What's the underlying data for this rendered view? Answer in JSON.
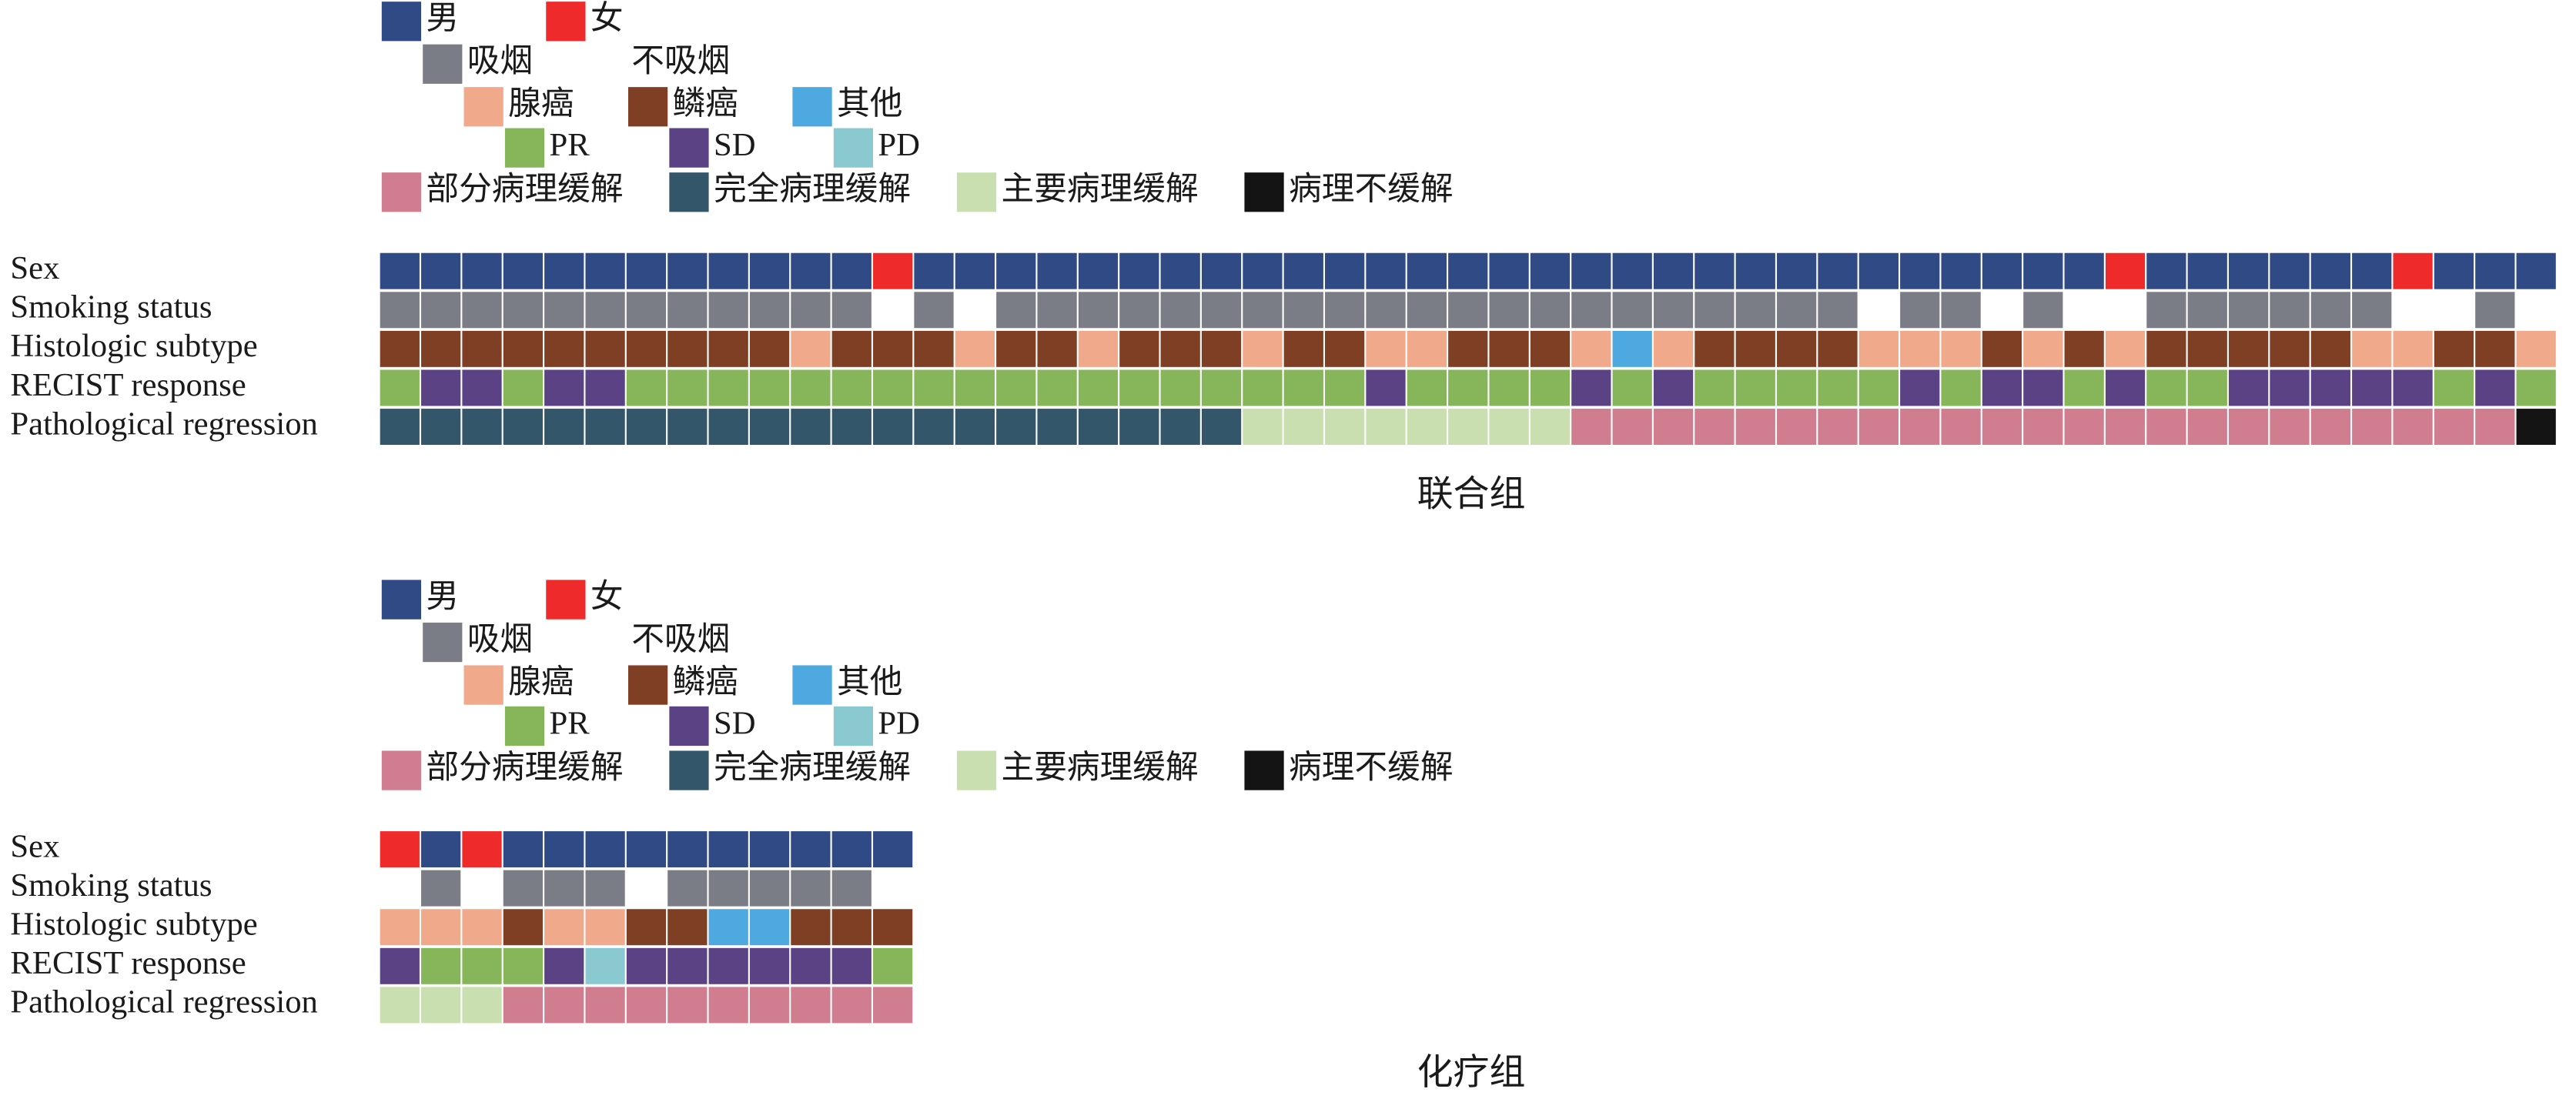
{
  "chart_data": [
    {
      "type": "tile",
      "title": "联合组",
      "legend": [
        [
          {
            "label": "男",
            "color": "#2f4a85"
          },
          {
            "label": "女",
            "color": "#ee2a2a"
          }
        ],
        [
          {
            "label": "吸烟",
            "color": "#7a7d85"
          },
          {
            "label": "不吸烟",
            "color": "#ffffff"
          }
        ],
        [
          {
            "label": "腺癌",
            "color": "#f0a98a"
          },
          {
            "label": "鳞癌",
            "color": "#7f3f25"
          },
          {
            "label": "其他",
            "color": "#4ea9e0"
          }
        ],
        [
          {
            "label": "PR",
            "color": "#86b55a"
          },
          {
            "label": "SD",
            "color": "#5a4285"
          },
          {
            "label": "PD",
            "color": "#8bc9d0"
          }
        ],
        [
          {
            "label": "部分病理缓解",
            "color": "#d07d8f"
          },
          {
            "label": "完全病理缓解",
            "color": "#34566a"
          },
          {
            "label": "主要病理缓解",
            "color": "#c9dfb0"
          },
          {
            "label": "病理不缓解",
            "color": "#141414"
          }
        ]
      ],
      "rows": [
        {
          "name": "Sex",
          "values": [
            "男",
            "男",
            "男",
            "男",
            "男",
            "男",
            "男",
            "男",
            "男",
            "男",
            "男",
            "男",
            "女",
            "男",
            "男",
            "男",
            "男",
            "男",
            "男",
            "男",
            "男",
            "男",
            "男",
            "男",
            "男",
            "男",
            "男",
            "男",
            "男",
            "男",
            "男",
            "男",
            "男",
            "男",
            "男",
            "男",
            "男",
            "男",
            "男",
            "男",
            "男",
            "男",
            "女",
            "男",
            "男",
            "男",
            "男",
            "男",
            "男",
            "女",
            "男",
            "男",
            "男"
          ]
        },
        {
          "name": "Smoking status",
          "values": [
            "吸烟",
            "吸烟",
            "吸烟",
            "吸烟",
            "吸烟",
            "吸烟",
            "吸烟",
            "吸烟",
            "吸烟",
            "吸烟",
            "吸烟",
            "吸烟",
            "不吸烟",
            "吸烟",
            "不吸烟",
            "吸烟",
            "吸烟",
            "吸烟",
            "吸烟",
            "吸烟",
            "吸烟",
            "吸烟",
            "吸烟",
            "吸烟",
            "吸烟",
            "吸烟",
            "吸烟",
            "吸烟",
            "吸烟",
            "吸烟",
            "吸烟",
            "吸烟",
            "吸烟",
            "吸烟",
            "吸烟",
            "吸烟",
            "不吸烟",
            "吸烟",
            "吸烟",
            "不吸烟",
            "吸烟",
            "不吸烟",
            "不吸烟",
            "吸烟",
            "吸烟",
            "吸烟",
            "吸烟",
            "吸烟",
            "吸烟",
            "不吸烟",
            "不吸烟",
            "吸烟",
            "不吸烟"
          ]
        },
        {
          "name": "Histologic subtype",
          "values": [
            "鳞癌",
            "鳞癌",
            "鳞癌",
            "鳞癌",
            "鳞癌",
            "鳞癌",
            "鳞癌",
            "鳞癌",
            "鳞癌",
            "鳞癌",
            "腺癌",
            "鳞癌",
            "鳞癌",
            "鳞癌",
            "腺癌",
            "鳞癌",
            "鳞癌",
            "腺癌",
            "鳞癌",
            "鳞癌",
            "鳞癌",
            "腺癌",
            "鳞癌",
            "鳞癌",
            "腺癌",
            "腺癌",
            "鳞癌",
            "鳞癌",
            "鳞癌",
            "腺癌",
            "其他",
            "腺癌",
            "鳞癌",
            "鳞癌",
            "鳞癌",
            "鳞癌",
            "腺癌",
            "腺癌",
            "腺癌",
            "鳞癌",
            "腺癌",
            "鳞癌",
            "腺癌",
            "鳞癌",
            "鳞癌",
            "鳞癌",
            "鳞癌",
            "鳞癌",
            "腺癌",
            "腺癌",
            "鳞癌",
            "鳞癌",
            "腺癌"
          ]
        },
        {
          "name": "RECIST response",
          "values": [
            "PR",
            "SD",
            "SD",
            "PR",
            "SD",
            "SD",
            "PR",
            "PR",
            "PR",
            "PR",
            "PR",
            "PR",
            "PR",
            "PR",
            "PR",
            "PR",
            "PR",
            "PR",
            "PR",
            "PR",
            "PR",
            "PR",
            "PR",
            "PR",
            "SD",
            "PR",
            "PR",
            "PR",
            "PR",
            "SD",
            "PR",
            "SD",
            "PR",
            "PR",
            "PR",
            "PR",
            "PR",
            "SD",
            "PR",
            "SD",
            "SD",
            "PR",
            "SD",
            "PR",
            "PR",
            "SD",
            "SD",
            "SD",
            "SD",
            "SD",
            "PR",
            "SD",
            "PR"
          ]
        },
        {
          "name": "Pathological regression",
          "values": [
            "完全病理缓解",
            "完全病理缓解",
            "完全病理缓解",
            "完全病理缓解",
            "完全病理缓解",
            "完全病理缓解",
            "完全病理缓解",
            "完全病理缓解",
            "完全病理缓解",
            "完全病理缓解",
            "完全病理缓解",
            "完全病理缓解",
            "完全病理缓解",
            "完全病理缓解",
            "完全病理缓解",
            "完全病理缓解",
            "完全病理缓解",
            "完全病理缓解",
            "完全病理缓解",
            "完全病理缓解",
            "完全病理缓解",
            "主要病理缓解",
            "主要病理缓解",
            "主要病理缓解",
            "主要病理缓解",
            "主要病理缓解",
            "主要病理缓解",
            "主要病理缓解",
            "主要病理缓解",
            "部分病理缓解",
            "部分病理缓解",
            "部分病理缓解",
            "部分病理缓解",
            "部分病理缓解",
            "部分病理缓解",
            "部分病理缓解",
            "部分病理缓解",
            "部分病理缓解",
            "部分病理缓解",
            "部分病理缓解",
            "部分病理缓解",
            "部分病理缓解",
            "部分病理缓解",
            "部分病理缓解",
            "部分病理缓解",
            "部分病理缓解",
            "部分病理缓解",
            "部分病理缓解",
            "部分病理缓解",
            "部分病理缓解",
            "部分病理缓解",
            "部分病理缓解",
            "病理不缓解"
          ]
        }
      ]
    },
    {
      "type": "tile",
      "title": "化疗组",
      "legend": [
        [
          {
            "label": "男",
            "color": "#2f4a85"
          },
          {
            "label": "女",
            "color": "#ee2a2a"
          }
        ],
        [
          {
            "label": "吸烟",
            "color": "#7a7d85"
          },
          {
            "label": "不吸烟",
            "color": "#ffffff"
          }
        ],
        [
          {
            "label": "腺癌",
            "color": "#f0a98a"
          },
          {
            "label": "鳞癌",
            "color": "#7f3f25"
          },
          {
            "label": "其他",
            "color": "#4ea9e0"
          }
        ],
        [
          {
            "label": "PR",
            "color": "#86b55a"
          },
          {
            "label": "SD",
            "color": "#5a4285"
          },
          {
            "label": "PD",
            "color": "#8bc9d0"
          }
        ],
        [
          {
            "label": "部分病理缓解",
            "color": "#d07d8f"
          },
          {
            "label": "完全病理缓解",
            "color": "#34566a"
          },
          {
            "label": "主要病理缓解",
            "color": "#c9dfb0"
          },
          {
            "label": "病理不缓解",
            "color": "#141414"
          }
        ]
      ],
      "rows": [
        {
          "name": "Sex",
          "values": [
            "女",
            "男",
            "女",
            "男",
            "男",
            "男",
            "男",
            "男",
            "男",
            "男",
            "男",
            "男",
            "男"
          ]
        },
        {
          "name": "Smoking status",
          "values": [
            "不吸烟",
            "吸烟",
            "不吸烟",
            "吸烟",
            "吸烟",
            "吸烟",
            "不吸烟",
            "吸烟",
            "吸烟",
            "吸烟",
            "吸烟",
            "吸烟",
            "不吸烟"
          ]
        },
        {
          "name": "Histologic subtype",
          "values": [
            "腺癌",
            "腺癌",
            "腺癌",
            "鳞癌",
            "腺癌",
            "腺癌",
            "鳞癌",
            "鳞癌",
            "其他",
            "其他",
            "鳞癌",
            "鳞癌",
            "鳞癌"
          ]
        },
        {
          "name": "RECIST response",
          "values": [
            "SD",
            "PR",
            "PR",
            "PR",
            "SD",
            "PD",
            "SD",
            "SD",
            "SD",
            "SD",
            "SD",
            "SD",
            "PR"
          ]
        },
        {
          "name": "Pathological regression",
          "values": [
            "主要病理缓解",
            "主要病理缓解",
            "主要病理缓解",
            "部分病理缓解",
            "部分病理缓解",
            "部分病理缓解",
            "部分病理缓解",
            "部分病理缓解",
            "部分病理缓解",
            "部分病理缓解",
            "部分病理缓解",
            "部分病理缓解",
            "部分病理缓解"
          ]
        }
      ]
    }
  ]
}
